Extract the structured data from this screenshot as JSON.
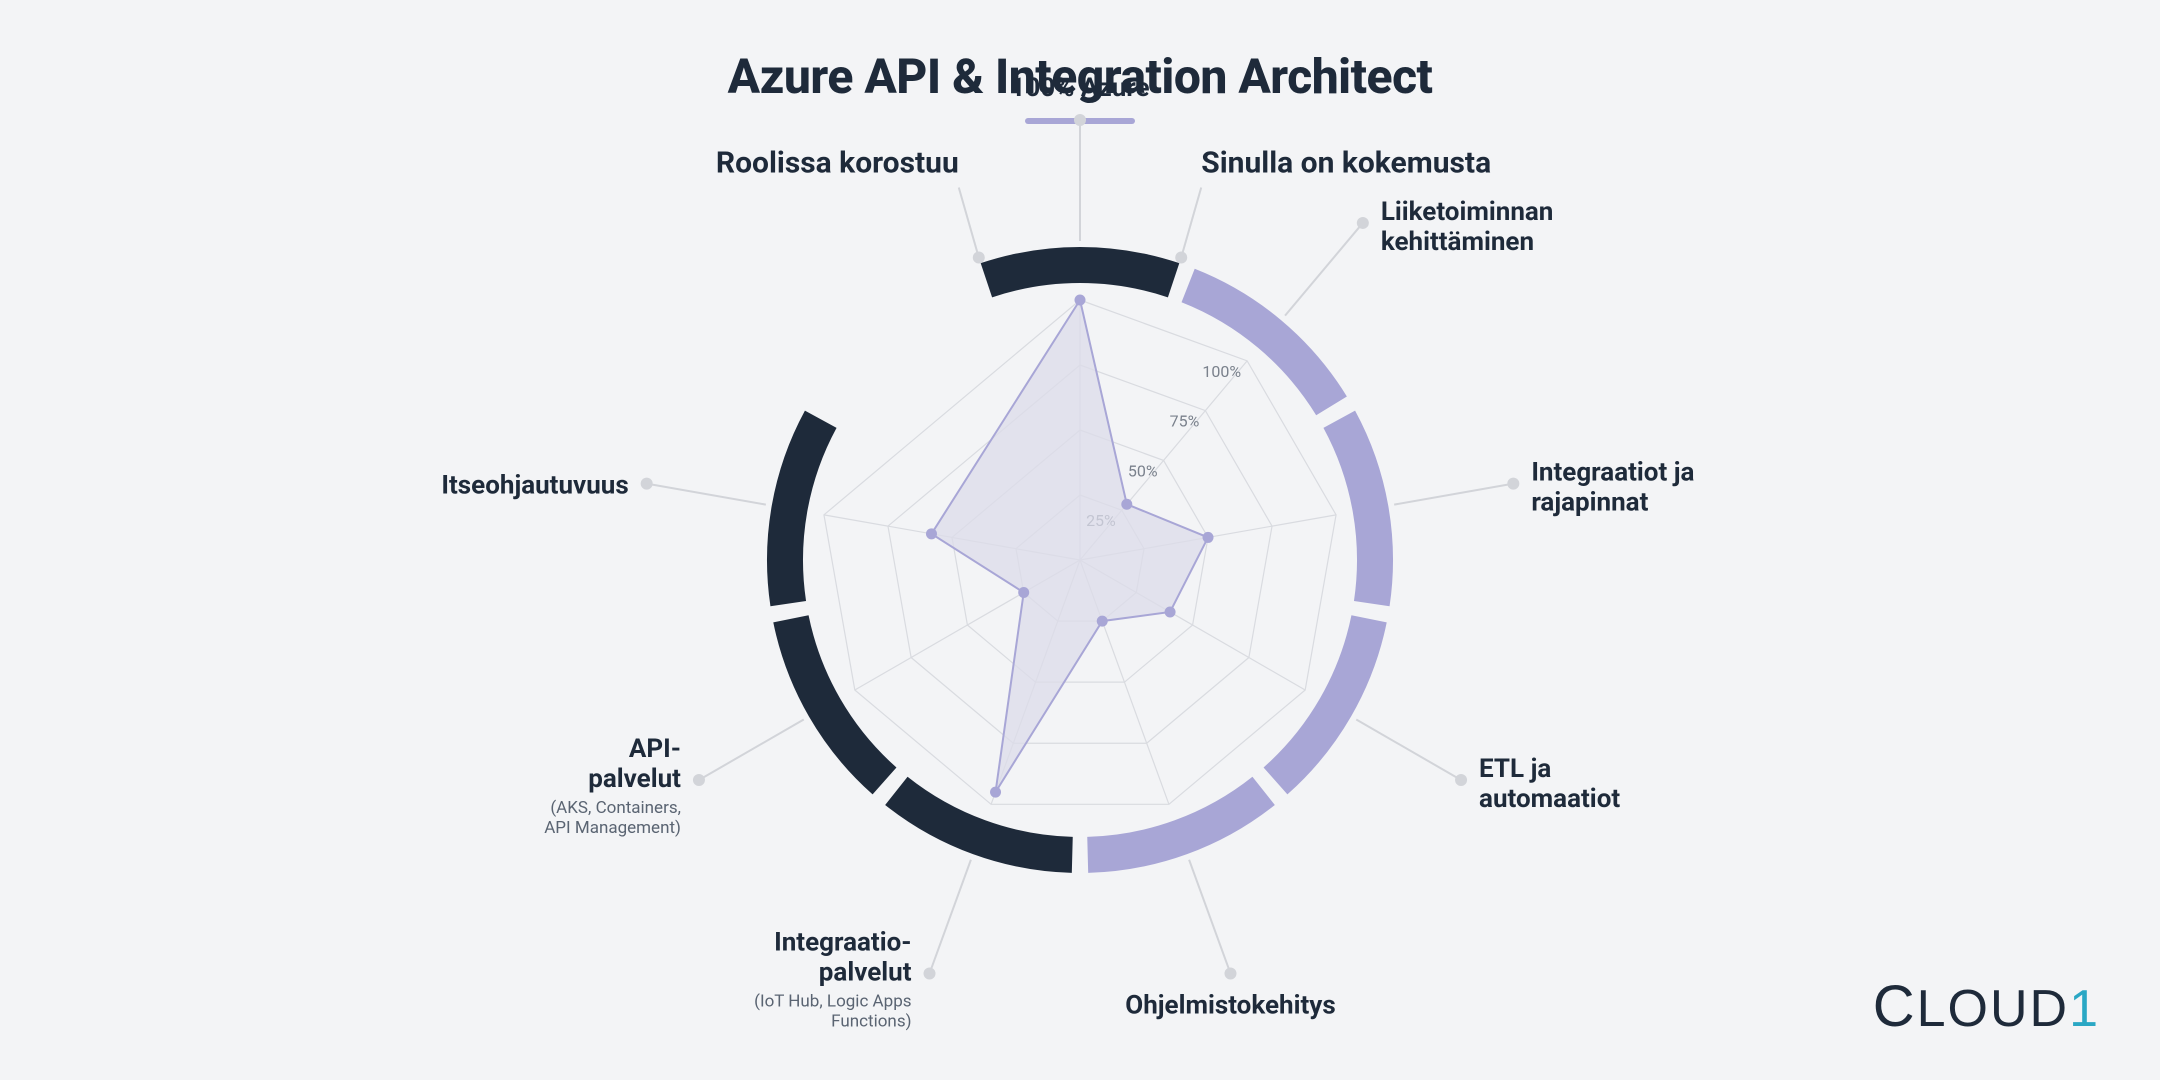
{
  "title": "Azure API & Integration Architect",
  "group_left_label": "Roolissa korostuu",
  "group_right_label": "Sinulla on kokemusta",
  "logo_text_prefix": "C",
  "logo_text_middle": "LOUD",
  "logo_text_suffix": "1",
  "radar": {
    "type": "radar",
    "n_axes": 9,
    "rings": [
      25,
      50,
      75,
      100
    ],
    "ring_labels": [
      "25%",
      "50%",
      "75%",
      "100%"
    ],
    "axes": [
      {
        "label": "100% Azure",
        "sub": "",
        "group": "left"
      },
      {
        "label": "Liiketoiminnan",
        "sub": "kehittäminen",
        "group": "right"
      },
      {
        "label": "Integraatiot ja",
        "sub": "rajapinnat",
        "group": "right"
      },
      {
        "label": "ETL ja",
        "sub": "automaatiot",
        "group": "right"
      },
      {
        "label": "Ohjelmistokehitys",
        "sub": "",
        "group": "right"
      },
      {
        "label": "Integraatio-",
        "sub": "palvelut",
        "sub2": "(IoT Hub, Logic Apps\nFunctions)",
        "group": "left"
      },
      {
        "label": "API-",
        "sub": "palvelut",
        "sub2": "(AKS, Containers,\nAPI Management)",
        "group": "left"
      },
      {
        "label": "Itseohjautuvuus",
        "sub": "",
        "group": "left"
      },
      {
        "label": "",
        "sub": "",
        "group": "gap"
      }
    ],
    "values": [
      100,
      28,
      50,
      40,
      25,
      95,
      25,
      58,
      0
    ],
    "chart_radius": 260,
    "arc_radius": 295,
    "arc_width": 36,
    "arc_gap_deg": 3,
    "label_radius": 440,
    "dot_radius": 440,
    "colors": {
      "arc_left": "#1e2a3a",
      "arc_right": "#a8a6d6",
      "grid": "#d9dbe0",
      "axis_line": "#d9dbe0",
      "fill": "#dcdce9",
      "fill_opacity": 0.75,
      "stroke": "#a8a6d6",
      "marker": "#a8a6d6",
      "label_dot": "#d2d4d9",
      "leader": "#d2d4d9",
      "ring_text": "#7a818c",
      "bg": "#f3f4f6",
      "title": "#1e2a3a"
    },
    "title_fontsize": 48,
    "header_fontsize": 30,
    "axis_label_fontsize": 26,
    "axis_sublabel_fontsize": 17,
    "ring_label_fontsize": 16
  }
}
